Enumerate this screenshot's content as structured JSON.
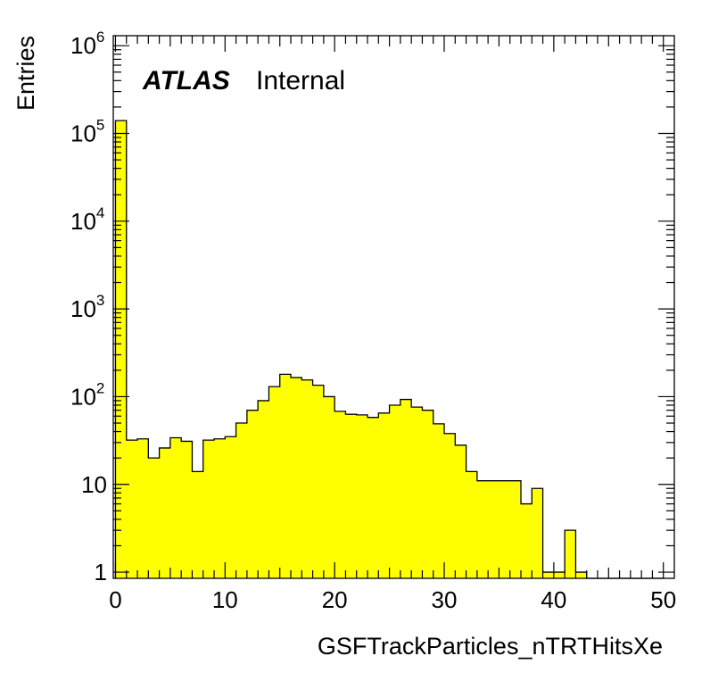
{
  "chart_data": {
    "type": "bar",
    "subtype": "histogram",
    "bin_edges_start": 0,
    "bin_width": 1,
    "values": [
      140000,
      32,
      33,
      20,
      26,
      34,
      31,
      14,
      32,
      33,
      35,
      50,
      70,
      90,
      130,
      180,
      165,
      155,
      135,
      100,
      68,
      63,
      62,
      58,
      65,
      80,
      93,
      76,
      70,
      49,
      38,
      28,
      14,
      11,
      11,
      11,
      11,
      6,
      9,
      1,
      1,
      3,
      1,
      0,
      0,
      0,
      0,
      0,
      0,
      0
    ],
    "fill_color": "#ffff00",
    "line_color": "#000000",
    "xlabel": "GSFTrackParticles_nTRTHitsXe",
    "ylabel": "Entries",
    "xlim": [
      -0.2,
      51
    ],
    "ylim": [
      0.85,
      1300000
    ],
    "yscale": "log",
    "xticks": [
      {
        "value": 0,
        "label": "0"
      },
      {
        "value": 10,
        "label": "10"
      },
      {
        "value": 20,
        "label": "20"
      },
      {
        "value": 30,
        "label": "30"
      },
      {
        "value": 40,
        "label": "40"
      },
      {
        "value": 50,
        "label": "50"
      }
    ],
    "yticks": [
      {
        "value": 1,
        "base": "1",
        "exp": ""
      },
      {
        "value": 10,
        "base": "10",
        "exp": ""
      },
      {
        "value": 100,
        "base": "10",
        "exp": "2"
      },
      {
        "value": 1000,
        "base": "10",
        "exp": "3"
      },
      {
        "value": 10000,
        "base": "10",
        "exp": "4"
      },
      {
        "value": 100000,
        "base": "10",
        "exp": "5"
      },
      {
        "value": 1000000,
        "base": "10",
        "exp": "6"
      }
    ],
    "label_atlas": "ATLAS",
    "label_status": "Internal"
  }
}
